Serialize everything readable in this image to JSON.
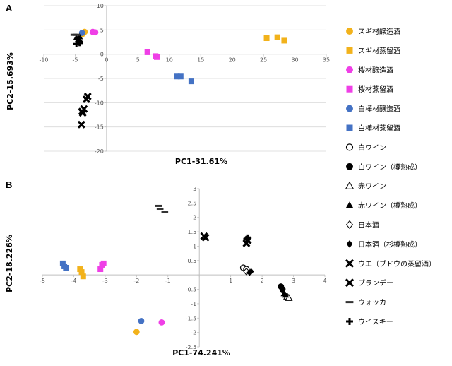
{
  "chart_data": [
    {
      "panel": "A",
      "type": "scatter",
      "xlabel": "PC1-31.61%",
      "ylabel": "PC2-15.693%",
      "xlim": [
        -10,
        35
      ],
      "ylim": [
        -20,
        10
      ],
      "xticks": [
        -10,
        -5,
        0,
        5,
        10,
        15,
        20,
        25,
        30,
        35
      ],
      "yticks": [
        -20,
        -15,
        -10,
        -5,
        0,
        5,
        10
      ],
      "grid": "horizontal",
      "series": [
        {
          "name": "スギ材醸造酒",
          "points": [
            [
              -3.8,
              4.2
            ],
            [
              -3.5,
              4.6
            ]
          ]
        },
        {
          "name": "スギ材蒸留酒",
          "points": [
            [
              25.5,
              3.3
            ],
            [
              27.2,
              3.5
            ],
            [
              28.3,
              2.8
            ]
          ]
        },
        {
          "name": "桜材醸造酒",
          "points": [
            [
              -2.2,
              4.6
            ],
            [
              -1.8,
              4.5
            ]
          ]
        },
        {
          "name": "桜材蒸留酒",
          "points": [
            [
              6.5,
              0.4
            ],
            [
              7.8,
              -0.4
            ],
            [
              8.0,
              -0.6
            ]
          ]
        },
        {
          "name": "白樺材醸造酒",
          "points": [
            [
              -3.9,
              4.4
            ]
          ]
        },
        {
          "name": "白樺材蒸留酒",
          "points": [
            [
              11.2,
              -4.6
            ],
            [
              11.8,
              -4.6
            ],
            [
              13.5,
              -5.6
            ]
          ]
        },
        {
          "name": "白ワイン",
          "points": []
        },
        {
          "name": "白ワイン（樽熟成）",
          "points": []
        },
        {
          "name": "赤ワイン",
          "points": []
        },
        {
          "name": "赤ワイン（樽熟成）",
          "points": [
            [
              -4.8,
              3.4
            ],
            [
              -4.3,
              3.6
            ],
            [
              -4.5,
              3.1
            ]
          ]
        },
        {
          "name": "日本酒",
          "points": []
        },
        {
          "name": "日本酒（杉樽熟成）",
          "points": [
            [
              -4.6,
              2.5
            ],
            [
              -4.2,
              2.6
            ]
          ]
        },
        {
          "name": "ウエ（ブドウの蒸留酒）",
          "points": [
            [
              -3.0,
              -8.7
            ],
            [
              -3.2,
              -9.3
            ],
            [
              -3.6,
              -11.3
            ],
            [
              -3.9,
              -11.8
            ],
            [
              -3.8,
              -12.1
            ]
          ]
        },
        {
          "name": "ブランデー",
          "points": [
            [
              -4.0,
              -14.5
            ]
          ]
        },
        {
          "name": "ウォッカ",
          "points": [
            [
              -5.2,
              4.0
            ],
            [
              -4.8,
              4.0
            ]
          ]
        },
        {
          "name": "ウイスキー",
          "points": [
            [
              -4.8,
              2.1
            ],
            [
              -4.3,
              2.3
            ]
          ]
        }
      ]
    },
    {
      "panel": "B",
      "type": "scatter",
      "xlabel": "PC1-74.241%",
      "ylabel": "PC2-18.226%",
      "xlim": [
        -5,
        4
      ],
      "ylim": [
        -2.5,
        3
      ],
      "xticks": [
        -5,
        -4,
        -3,
        -2,
        -1,
        0,
        1,
        2,
        3,
        4
      ],
      "yticks": [
        -2.5,
        -2,
        -1.5,
        -1,
        -0.5,
        0,
        0.5,
        1,
        1.5,
        2,
        2.5,
        3
      ],
      "grid": "none",
      "series": [
        {
          "name": "スギ材醸造酒",
          "points": [
            [
              -2.0,
              -1.98
            ]
          ]
        },
        {
          "name": "スギ材蒸留酒",
          "points": [
            [
              -3.8,
              0.2
            ],
            [
              -3.75,
              0.1
            ],
            [
              -3.7,
              -0.05
            ]
          ]
        },
        {
          "name": "桜材醸造酒",
          "points": [
            [
              -1.2,
              -1.65
            ]
          ]
        },
        {
          "name": "桜材蒸留酒",
          "points": [
            [
              -3.15,
              0.2
            ],
            [
              -3.1,
              0.35
            ],
            [
              -3.05,
              0.4
            ]
          ]
        },
        {
          "name": "白樺材醸造酒",
          "points": [
            [
              -1.85,
              -1.6
            ]
          ]
        },
        {
          "name": "白樺材蒸留酒",
          "points": [
            [
              -4.35,
              0.4
            ],
            [
              -4.3,
              0.3
            ],
            [
              -4.25,
              0.25
            ]
          ]
        },
        {
          "name": "白ワイン",
          "points": [
            [
              1.4,
              0.25
            ],
            [
              1.5,
              0.2
            ]
          ]
        },
        {
          "name": "白ワイン（樽熟成）",
          "points": [
            [
              2.6,
              -0.4
            ],
            [
              2.65,
              -0.5
            ]
          ]
        },
        {
          "name": "赤ワイン",
          "points": [
            [
              2.8,
              -0.75
            ],
            [
              2.85,
              -0.8
            ]
          ]
        },
        {
          "name": "赤ワイン（樽熟成）",
          "points": [
            [
              2.7,
              -0.65
            ],
            [
              2.75,
              -0.7
            ]
          ]
        },
        {
          "name": "日本酒",
          "points": [
            [
              1.5,
              0.12
            ]
          ]
        },
        {
          "name": "日本酒（杉樽熟成）",
          "points": [
            [
              1.6,
              0.08
            ],
            [
              1.65,
              0.12
            ]
          ]
        },
        {
          "name": "ウエ（ブドウの蒸留酒）",
          "points": [
            [
              1.5,
              1.1
            ],
            [
              1.55,
              1.2
            ]
          ]
        },
        {
          "name": "ブランデー",
          "points": [
            [
              0.15,
              1.35
            ],
            [
              0.2,
              1.3
            ]
          ]
        },
        {
          "name": "ウォッカ",
          "points": [
            [
              -1.3,
              2.4
            ],
            [
              -1.25,
              2.3
            ],
            [
              -1.1,
              2.2
            ]
          ]
        },
        {
          "name": "ウイスキー",
          "points": [
            [
              1.5,
              1.25
            ],
            [
              1.55,
              1.3
            ]
          ]
        }
      ]
    }
  ],
  "legend_styles": [
    {
      "marker": "circle",
      "color": "#f2b21b"
    },
    {
      "marker": "square",
      "color": "#f2b21b"
    },
    {
      "marker": "circle",
      "color": "#ef3fe6"
    },
    {
      "marker": "square",
      "color": "#ef3fe6"
    },
    {
      "marker": "circle",
      "color": "#4472c4"
    },
    {
      "marker": "square",
      "color": "#4472c4"
    },
    {
      "marker": "circle-open",
      "color": "#000000"
    },
    {
      "marker": "circle",
      "color": "#000000"
    },
    {
      "marker": "triangle-open",
      "color": "#000000"
    },
    {
      "marker": "triangle",
      "color": "#000000"
    },
    {
      "marker": "diamond-open",
      "color": "#000000"
    },
    {
      "marker": "diamond",
      "color": "#000000"
    },
    {
      "marker": "x-bold",
      "color": "#000000"
    },
    {
      "marker": "x-bold",
      "color": "#000000"
    },
    {
      "marker": "dash",
      "color": "#333333"
    },
    {
      "marker": "plus",
      "color": "#000000"
    }
  ]
}
